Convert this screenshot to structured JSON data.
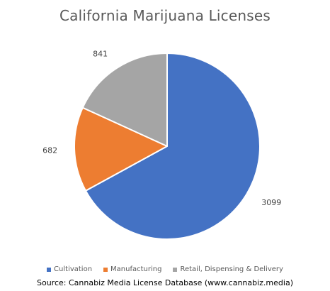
{
  "chart_data": {
    "type": "pie",
    "title": "California Marijuana Licenses",
    "categories": [
      "Cultivation",
      "Manufacturing",
      "Retail, Dispensing & Delivery"
    ],
    "values": [
      3099,
      682,
      841
    ],
    "data_labels": [
      "3099",
      "682",
      "841"
    ],
    "colors": [
      "#4472C4",
      "#ED7D31",
      "#A5A5A5"
    ],
    "legend_position": "bottom"
  },
  "source": "Source: Cannabiz Media License Database (www.cannabiz.media)"
}
